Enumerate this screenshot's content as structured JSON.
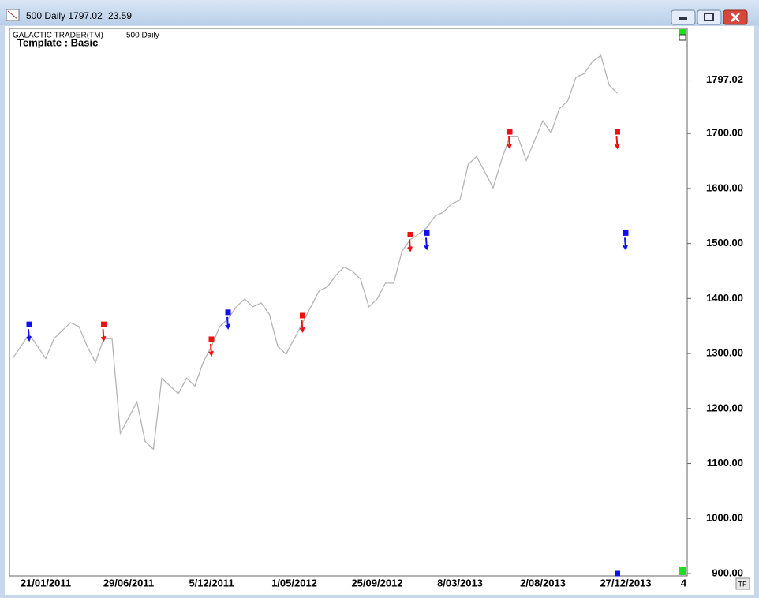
{
  "window": {
    "title": "500 Daily 1797.02",
    "change": "23.59"
  },
  "chart_data": {
    "type": "line",
    "brand": "GALACTIC TRADER(TM)",
    "symbol": "500 Daily",
    "template": "Template : Basic",
    "button": "TF",
    "categories": [
      null,
      null,
      null,
      null,
      "21/01/2011",
      null,
      null,
      null,
      null,
      null,
      null,
      null,
      null,
      null,
      "29/06/2011",
      null,
      null,
      null,
      null,
      null,
      null,
      null,
      null,
      null,
      "5/12/2011",
      null,
      null,
      null,
      null,
      null,
      null,
      null,
      null,
      null,
      "1/05/2012",
      null,
      null,
      null,
      null,
      null,
      null,
      null,
      null,
      null,
      "25/09/2012",
      null,
      null,
      null,
      null,
      null,
      null,
      null,
      null,
      null,
      "8/03/2013",
      null,
      null,
      null,
      null,
      null,
      null,
      null,
      null,
      null,
      "2/08/2013",
      null,
      null,
      null,
      null,
      null,
      null,
      null,
      null,
      null,
      "27/12/2013",
      null,
      null,
      null,
      null,
      null,
      null,
      "4"
    ],
    "series": [
      {
        "color": "#b4b4b4",
        "values": [
          1291,
          1313,
          1335,
          1313,
          1291,
          1327,
          1342,
          1356,
          1349,
          1313,
          1284,
          1327,
          1327,
          1155,
          1183,
          1212,
          1140,
          1126,
          1255,
          1241,
          1227,
          1255,
          1241,
          1284,
          1313,
          1349,
          1363,
          1385,
          1399,
          1385,
          1392,
          1371,
          1313,
          1299,
          1327,
          1356,
          1385,
          1414,
          1421,
          1442,
          1457,
          1450,
          1435,
          1385,
          1399,
          1428,
          1428,
          1486,
          1507,
          1517,
          1529,
          1550,
          1557,
          1572,
          1579,
          1644,
          1658,
          1630,
          1601,
          1651,
          1694,
          1694,
          1651,
          1687,
          1723,
          1701,
          1745,
          1759,
          1802,
          1809,
          1831,
          1842,
          1788,
          1773,
          null,
          null,
          null,
          null,
          null,
          null,
          null,
          null
        ]
      },
      {
        "type": "marker",
        "color": "#ee1111",
        "values": [
          null,
          null,
          null,
          null,
          null,
          null,
          null,
          null,
          null,
          null,
          null,
          1353,
          null,
          null,
          null,
          null,
          null,
          null,
          null,
          null,
          null,
          null,
          null,
          null,
          1326,
          null,
          null,
          null,
          null,
          null,
          null,
          null,
          null,
          null,
          null,
          1369,
          null,
          null,
          null,
          null,
          null,
          null,
          null,
          null,
          null,
          null,
          null,
          null,
          1516,
          null,
          null,
          null,
          null,
          null,
          null,
          null,
          null,
          null,
          null,
          null,
          1703,
          null,
          null,
          null,
          null,
          null,
          null,
          null,
          null,
          null,
          null,
          null,
          null,
          1703,
          null,
          null,
          null,
          null,
          null,
          null,
          null,
          null
        ]
      },
      {
        "type": "marker",
        "color": "#1111ee",
        "values": [
          null,
          null,
          1353,
          null,
          null,
          null,
          null,
          null,
          null,
          null,
          null,
          null,
          null,
          null,
          null,
          null,
          null,
          null,
          null,
          null,
          null,
          null,
          null,
          null,
          null,
          null,
          1375,
          null,
          null,
          null,
          null,
          null,
          null,
          null,
          null,
          null,
          null,
          null,
          null,
          null,
          null,
          null,
          null,
          null,
          null,
          null,
          null,
          null,
          null,
          null,
          1519,
          null,
          null,
          null,
          null,
          null,
          null,
          null,
          null,
          null,
          null,
          null,
          null,
          null,
          null,
          null,
          null,
          null,
          null,
          null,
          null,
          null,
          null,
          900,
          1519,
          null,
          null,
          null,
          null,
          null,
          null,
          null
        ]
      }
    ],
    "ylim": [
      900,
      1891
    ],
    "yticks": [
      {
        "value": 900,
        "label": "900.00"
      },
      {
        "value": 1000,
        "label": "1000.00"
      },
      {
        "value": 1100,
        "label": "1100.00"
      },
      {
        "value": 1200,
        "label": "1200.00"
      },
      {
        "value": 1300,
        "label": "1300.00"
      },
      {
        "value": 1400,
        "label": "1400.00"
      },
      {
        "value": 1500,
        "label": "1500.00"
      },
      {
        "value": 1600,
        "label": "1600.00"
      },
      {
        "value": 1700,
        "label": "1700.00"
      },
      {
        "value": 1797.02,
        "label": "1797.02"
      }
    ]
  }
}
